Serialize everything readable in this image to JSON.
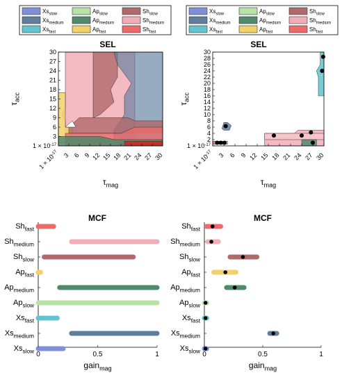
{
  "legend_items": [
    {
      "base": "Xs",
      "sub": "slow",
      "color": "#7f8fd8"
    },
    {
      "base": "Ap",
      "sub": "slow",
      "color": "#b7e3a6"
    },
    {
      "base": "Sh",
      "sub": "slow",
      "color": "#b06a6a"
    },
    {
      "base": "Xs",
      "sub": "medium",
      "color": "#5f7ea0"
    },
    {
      "base": "Ap",
      "sub": "medium",
      "color": "#4f8a6a"
    },
    {
      "base": "Sh",
      "sub": "medium",
      "color": "#f2aeb6"
    },
    {
      "base": "Xs",
      "sub": "fast",
      "color": "#62c4cf"
    },
    {
      "base": "Ap",
      "sub": "fast",
      "color": "#f3d06a"
    },
    {
      "base": "Sh",
      "sub": "fast",
      "color": "#ec6a6a"
    }
  ],
  "axes": {
    "sel_title": "SEL",
    "mcf_title": "MCF",
    "y_base": "τ",
    "y_sub": "acc",
    "x_base": "τ",
    "x_sub": "mag",
    "g_base": "gain",
    "g_sub": "mag"
  },
  "chart_data": [
    {
      "type": "area",
      "title": "SEL",
      "xlabel": "τ_mag",
      "ylabel": "τ_acc",
      "x_ticks": [
        "1 × 10^-17",
        "3",
        "6",
        "9",
        "12",
        "15",
        "18",
        "21",
        "24",
        "27",
        "30"
      ],
      "y_ticks": [
        "1 × 10^-17",
        "3",
        "6",
        "9",
        "12",
        "15",
        "18",
        "21",
        "24",
        "27",
        "30"
      ],
      "xlim": [
        0,
        30
      ],
      "ylim": [
        0,
        30
      ],
      "regions": [
        {
          "name": "Sh_medium",
          "color": "#f2aeb6",
          "note": "broad region covering tau_mag 2-22 over tau_acc 0-30"
        },
        {
          "name": "Sh_slow",
          "color": "#b06a6a",
          "note": "band tau_mag 10-17 upper, widening lower"
        },
        {
          "name": "Xs_medium",
          "color": "#5f7ea0",
          "note": "tau_mag 16-30 full height"
        },
        {
          "name": "Ap_fast",
          "color": "#f3d06a",
          "note": "tau_mag 0-2, tau_acc 0-17"
        },
        {
          "name": "Sh_fast",
          "color": "#ec6a6a",
          "note": "low tau_acc band 0-6 across"
        },
        {
          "name": "Ap_medium",
          "color": "#4f8a6a",
          "note": "tau_acc 0-4 across"
        }
      ]
    },
    {
      "type": "scatter",
      "title": "SEL",
      "xlabel": "τ_mag",
      "ylabel": "τ_acc",
      "x_ticks": [
        "1 × 10^-17",
        "3",
        "6",
        "9",
        "12",
        "15",
        "18",
        "21",
        "24",
        "27",
        "30"
      ],
      "y_ticks": [
        "1 × 10^-17",
        "2",
        "4",
        "6",
        "8",
        "10",
        "12",
        "14",
        "16",
        "18",
        "20",
        "22",
        "24",
        "26",
        "28",
        "30"
      ],
      "xlim": [
        0,
        30
      ],
      "ylim": [
        0,
        30
      ],
      "points": [
        {
          "series": "Xs_medium",
          "x": 3.5,
          "y": 6.3
        },
        {
          "series": "Xs_fast",
          "x": 29.5,
          "y": 24
        },
        {
          "series": "Xs_fast",
          "x": 29.8,
          "y": 28.5
        },
        {
          "series": "Sh_fast",
          "x": 1.2,
          "y": 1
        },
        {
          "series": "Sh_slow",
          "x": 2.2,
          "y": 1
        },
        {
          "series": "Ap_slow",
          "x": 3.2,
          "y": 1
        },
        {
          "series": "Sh_medium",
          "x": 16.5,
          "y": 3.3
        },
        {
          "series": "Sh_fast",
          "x": 24,
          "y": 3.3
        },
        {
          "series": "Sh_slow",
          "x": 26.5,
          "y": 4.3
        },
        {
          "series": "Ap_medium",
          "x": 27,
          "y": 1
        }
      ]
    },
    {
      "type": "bar",
      "title": "MCF",
      "xlabel": "gain_mag",
      "categories": [
        "Sh_fast",
        "Sh_medium",
        "Sh_slow",
        "Ap_fast",
        "Ap_medium",
        "Ap_slow",
        "Xs_fast",
        "Xs_medium",
        "Xs_slow"
      ],
      "x_ticks": [
        "0",
        "0.5",
        "1"
      ],
      "xlim": [
        0,
        1
      ],
      "ranges": [
        [
          0,
          0.13
        ],
        [
          0.28,
          1
        ],
        [
          0.05,
          0.8
        ],
        [
          0,
          0.02
        ],
        [
          0.18,
          1
        ],
        [
          0,
          1
        ],
        [
          0,
          0.16
        ],
        [
          0.28,
          1
        ],
        [
          0,
          0.21
        ]
      ]
    },
    {
      "type": "bar",
      "title": "MCF",
      "xlabel": "gain_mag",
      "categories": [
        "Sh_fast",
        "Sh_medium",
        "Sh_slow",
        "Ap_fast",
        "Ap_medium",
        "Ap_slow",
        "Xs_fast",
        "Xs_medium",
        "Xs_slow"
      ],
      "x_ticks": [
        "0",
        "0.5",
        "1"
      ],
      "xlim": [
        0,
        1
      ],
      "ranges": [
        [
          0.02,
          0.14
        ],
        [
          0.03,
          0.12
        ],
        [
          0.22,
          0.45
        ],
        [
          0.08,
          0.27
        ],
        [
          0.19,
          0.34
        ],
        [
          0,
          0.02
        ],
        [
          0,
          0.02
        ],
        [
          0.56,
          0.62
        ],
        [
          0,
          0.02
        ]
      ],
      "points": [
        0.07,
        0.06,
        0.33,
        0.18,
        0.26,
        0.01,
        0.01,
        0.59,
        0.01
      ]
    }
  ]
}
